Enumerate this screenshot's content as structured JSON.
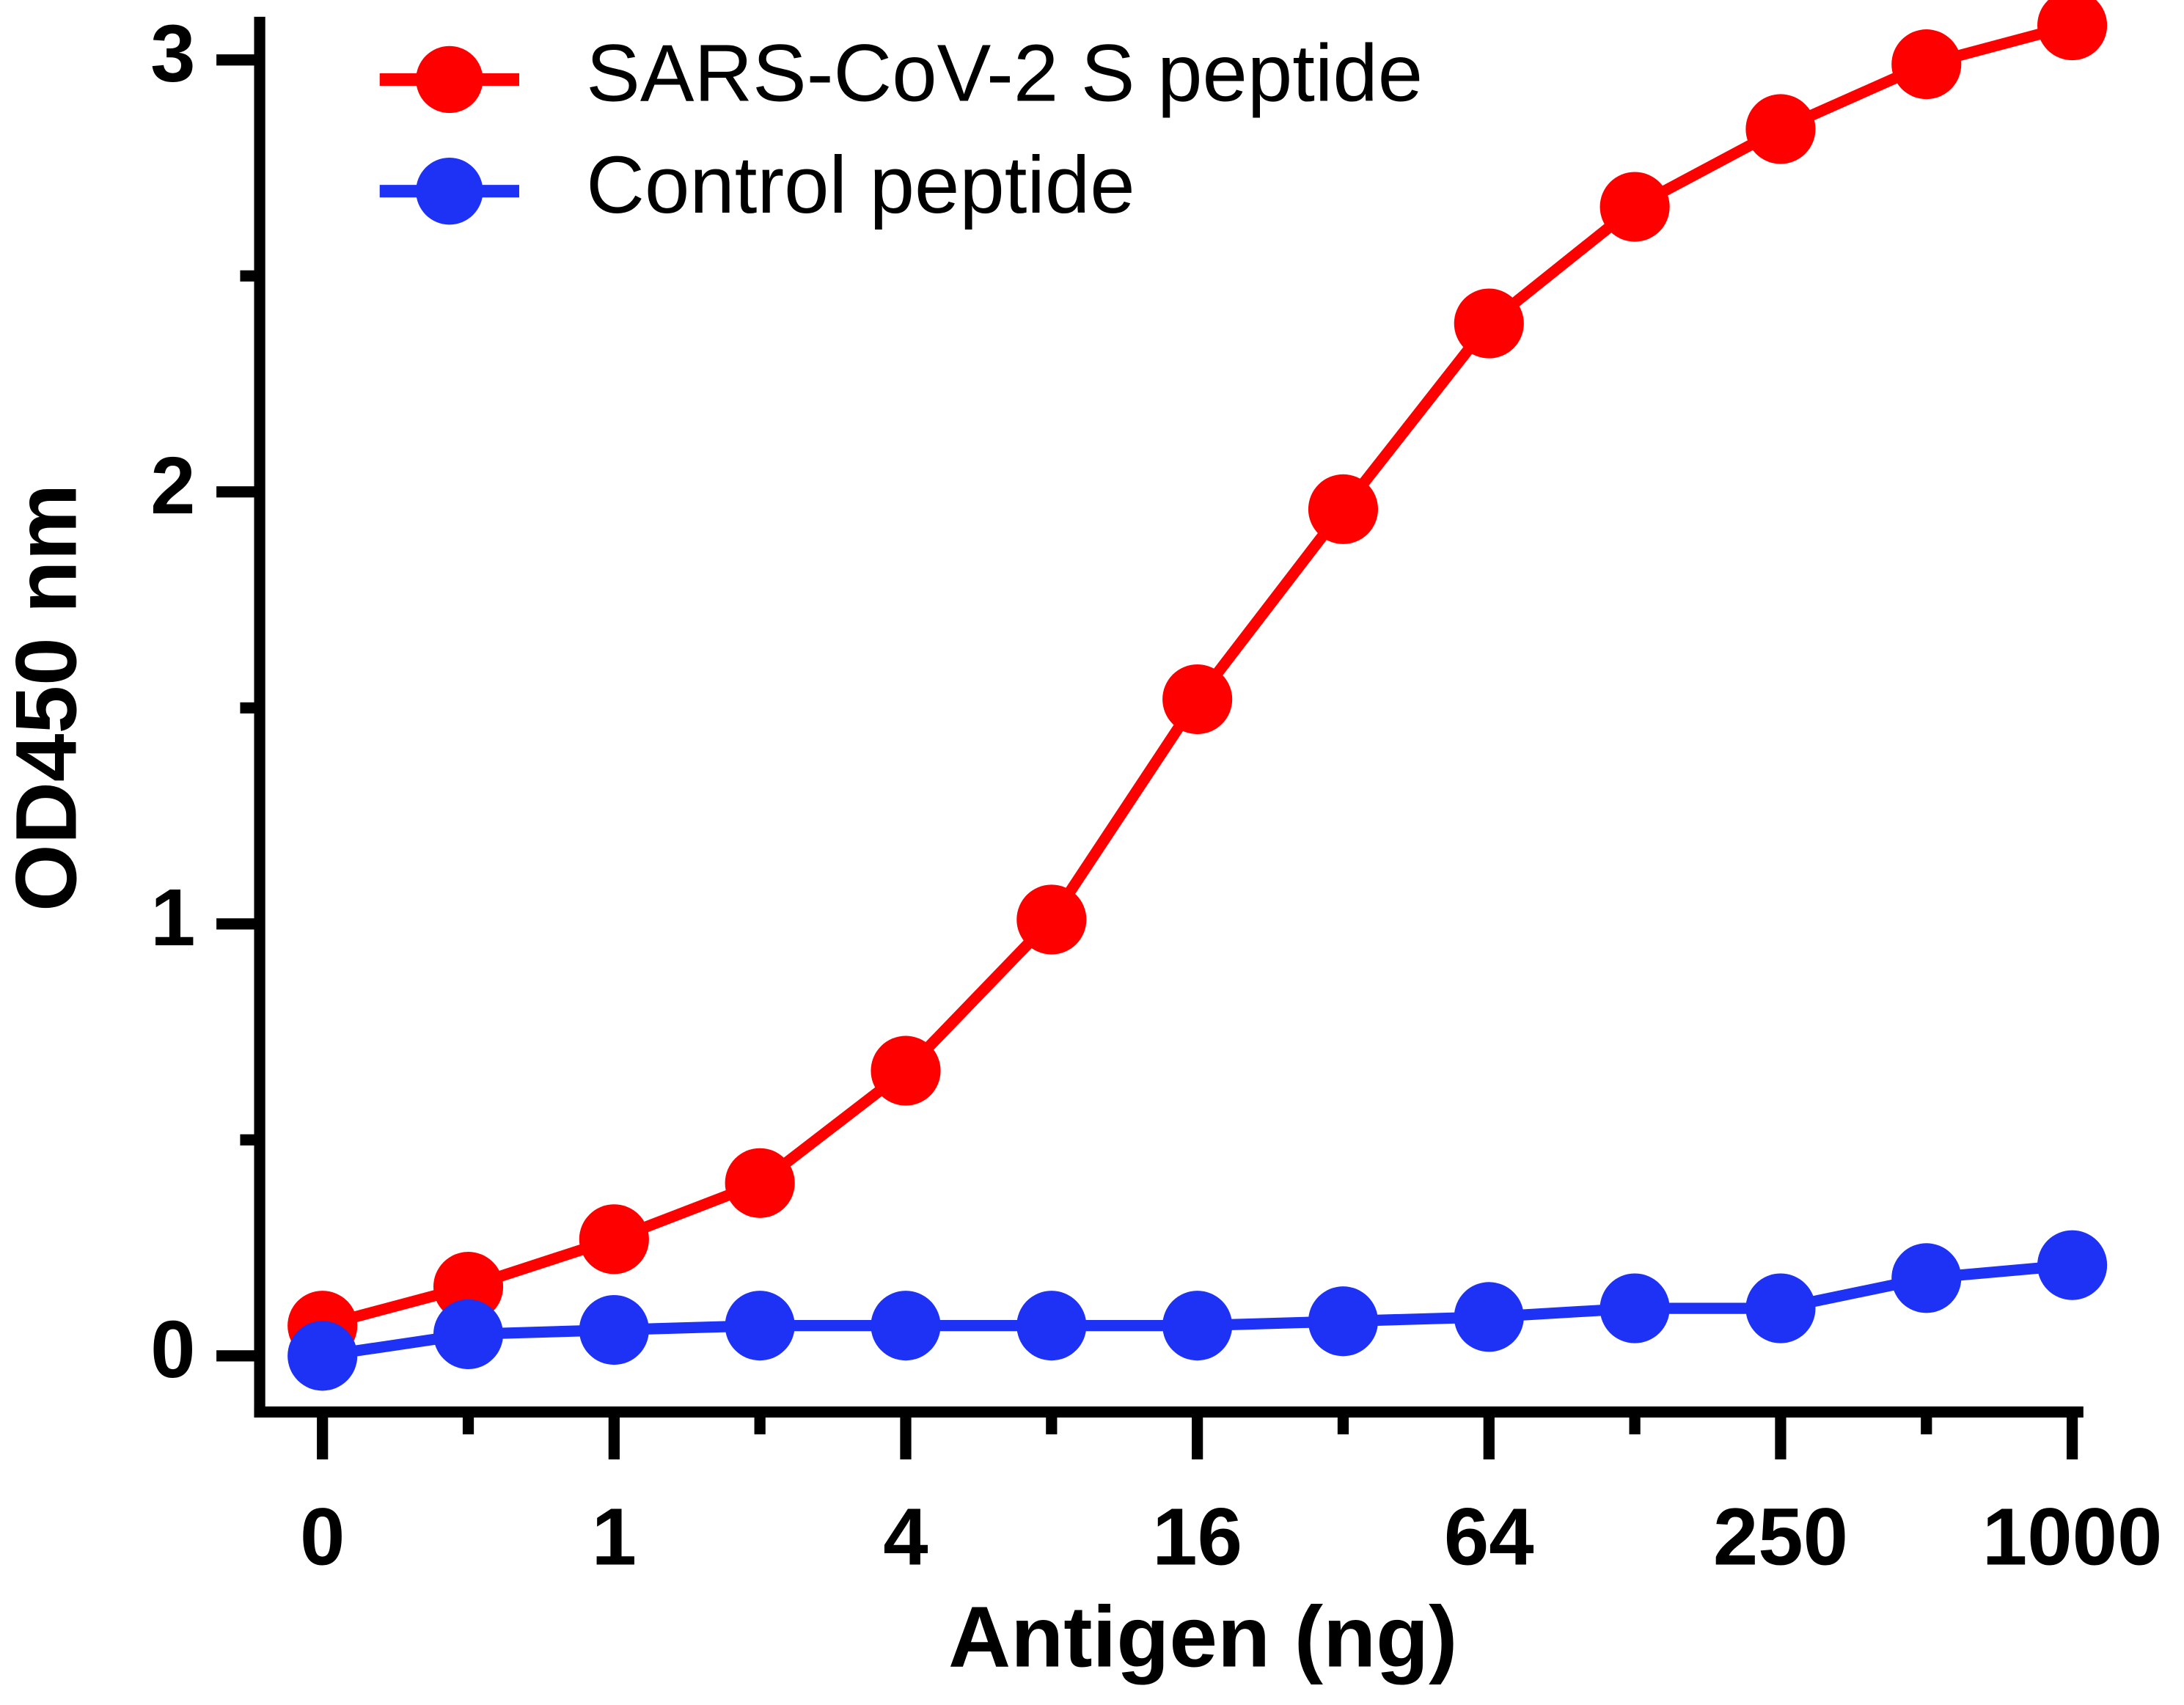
{
  "chart_data": {
    "type": "line",
    "x_label": "Antigen (ng)",
    "y_label": "OD450 nm",
    "categories": [
      "0",
      null,
      "1",
      null,
      "4",
      null,
      "16",
      null,
      "64",
      null,
      "250",
      null,
      "1000"
    ],
    "series": [
      {
        "name": "SARS-CoV-2 S peptide",
        "color": "#ff0000",
        "values": [
          0.07,
          0.16,
          0.27,
          0.4,
          0.66,
          1.01,
          1.52,
          1.96,
          2.39,
          2.66,
          2.84,
          2.99,
          3.08
        ]
      },
      {
        "name": "Control peptide",
        "color": "#1e32f5",
        "values": [
          0,
          0.05,
          0.06,
          0.07,
          0.07,
          0.07,
          0.07,
          0.08,
          0.09,
          0.11,
          0.11,
          0.18,
          0.21
        ]
      }
    ],
    "ylim": [
      -0.13,
      3.1
    ],
    "yticks": [
      0,
      1,
      2,
      3
    ],
    "yminorticks": [
      0.5,
      1.5,
      2.5
    ],
    "legend": "top-left"
  }
}
